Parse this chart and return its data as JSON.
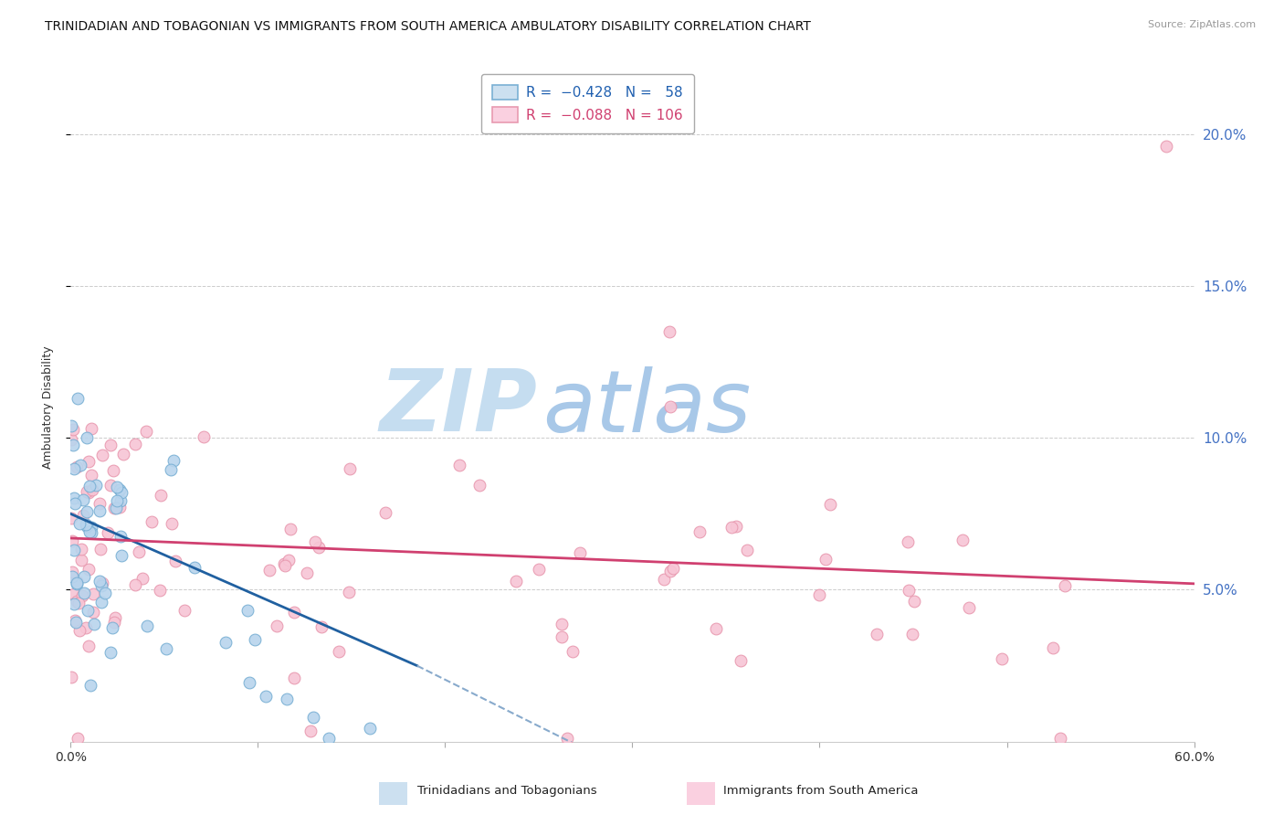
{
  "title": "TRINIDADIAN AND TOBAGONIAN VS IMMIGRANTS FROM SOUTH AMERICA AMBULATORY DISABILITY CORRELATION CHART",
  "source": "Source: ZipAtlas.com",
  "ylabel": "Ambulatory Disability",
  "series1_label": "Trinidadians and Tobagonians",
  "series2_label": "Immigrants from South America",
  "R1": -0.428,
  "N1": 58,
  "R2": -0.088,
  "N2": 106,
  "series1_fill": "#b8d4ed",
  "series1_edge": "#7ab0d4",
  "series2_fill": "#f7c5d5",
  "series2_edge": "#e89ab0",
  "line1_color": "#2060a0",
  "line2_color": "#d04070",
  "dash_color": "#88aacc",
  "watermark_zip": "ZIP",
  "watermark_atlas": "atlas",
  "xmin": 0.0,
  "xmax": 0.6,
  "ymin": 0.0,
  "ymax": 0.22,
  "yticks": [
    0.05,
    0.1,
    0.15,
    0.2
  ],
  "ytick_labels": [
    "5.0%",
    "10.0%",
    "15.0%",
    "20.0%"
  ],
  "title_fontsize": 10,
  "axis_label_fontsize": 9,
  "tick_fontsize": 10,
  "legend_fontsize": 11,
  "right_tick_color": "#4472c4"
}
